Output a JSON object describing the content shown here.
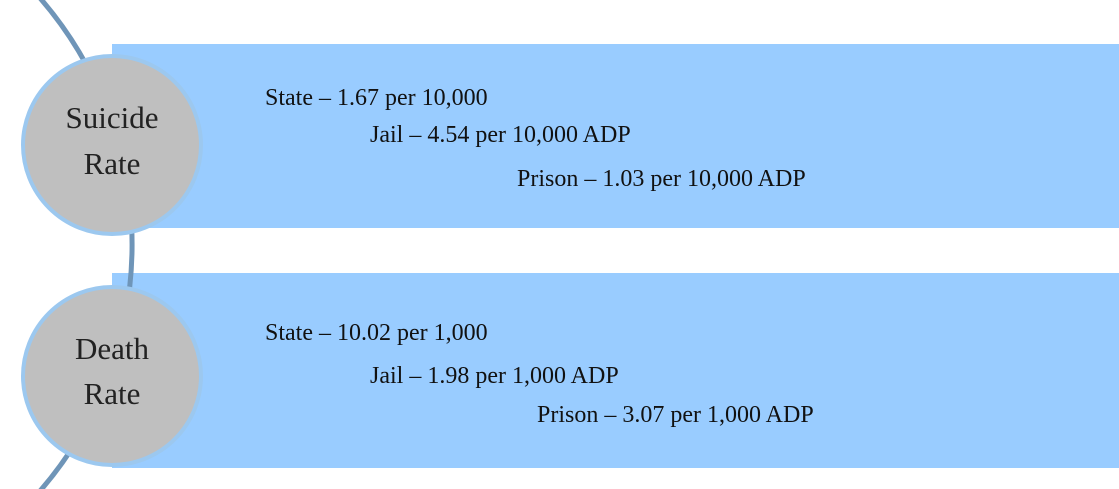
{
  "items": [
    {
      "label": [
        "Suicide",
        "Rate"
      ],
      "lines": [
        "State – 1.67 per 10,000",
        "Jail – 4.54 per 10,000 ADP",
        "Prison – 1.03 per 10,000 ADP"
      ]
    },
    {
      "label": [
        "Death",
        "Rate"
      ],
      "lines": [
        "State – 10.02 per 1,000",
        "Jail – 1.98 per 1,000 ADP",
        "Prison – 3.07 per 1,000 ADP"
      ]
    }
  ]
}
